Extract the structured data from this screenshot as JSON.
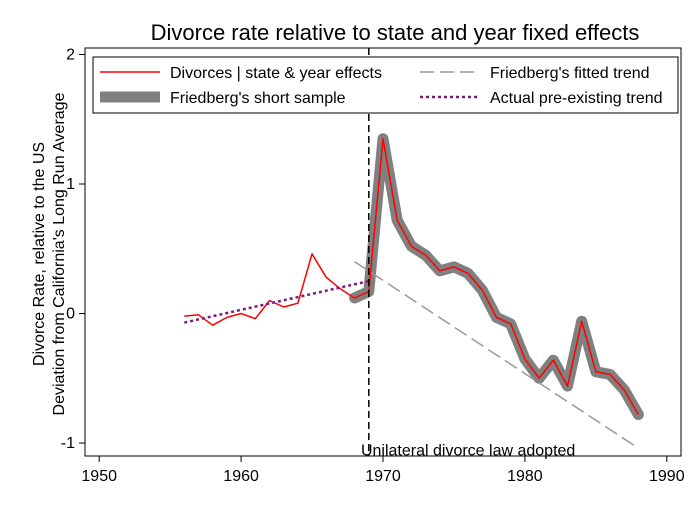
{
  "chart_data": {
    "type": "line",
    "title": "Divorce rate relative to state and year fixed effects",
    "ylabel_line1": "Divorce Rate, relative to the US",
    "ylabel_line2": "Deviation from California's Long Run Average",
    "xlabel": "",
    "xlim": [
      1949,
      1991
    ],
    "ylim": [
      -1.1,
      2.05
    ],
    "x_ticks": [
      1950,
      1960,
      1970,
      1980,
      1990
    ],
    "y_ticks": [
      -1,
      0,
      1,
      2
    ],
    "grid": false,
    "legend_position": "top",
    "vline": {
      "x": 1969,
      "style": "dashed",
      "color": "#000000"
    },
    "annotation": {
      "text": "Unilateral divorce law adopted",
      "x": 1976,
      "y": -1.02
    },
    "series": [
      {
        "name": "Friedberg's short sample",
        "color": "#808080",
        "style": "thick",
        "x": [
          1968,
          1969,
          1970,
          1971,
          1972,
          1973,
          1974,
          1975,
          1976,
          1977,
          1978,
          1979,
          1980,
          1981,
          1982,
          1983,
          1984,
          1985,
          1986,
          1987,
          1988
        ],
        "y": [
          0.12,
          0.17,
          1.35,
          0.72,
          0.52,
          0.45,
          0.33,
          0.36,
          0.31,
          0.18,
          -0.03,
          -0.08,
          -0.35,
          -0.5,
          -0.36,
          -0.56,
          -0.06,
          -0.45,
          -0.47,
          -0.59,
          -0.78
        ]
      },
      {
        "name": "Divorces | state & year effects",
        "color": "#ff0000",
        "style": "solid",
        "x": [
          1956,
          1957,
          1958,
          1959,
          1960,
          1961,
          1962,
          1963,
          1964,
          1965,
          1966,
          1967,
          1968,
          1969,
          1970,
          1971,
          1972,
          1973,
          1974,
          1975,
          1976,
          1977,
          1978,
          1979,
          1980,
          1981,
          1982,
          1983,
          1984,
          1985,
          1986,
          1987,
          1988
        ],
        "y": [
          -0.02,
          -0.01,
          -0.09,
          -0.03,
          0.0,
          -0.04,
          0.1,
          0.05,
          0.08,
          0.46,
          0.28,
          0.19,
          0.12,
          0.17,
          1.35,
          0.72,
          0.52,
          0.45,
          0.33,
          0.36,
          0.31,
          0.18,
          -0.03,
          -0.08,
          -0.35,
          -0.5,
          -0.36,
          -0.56,
          -0.06,
          -0.45,
          -0.47,
          -0.59,
          -0.78
        ]
      },
      {
        "name": "Friedberg's fitted trend",
        "color": "#999999",
        "style": "longdash",
        "x": [
          1968,
          1988
        ],
        "y": [
          0.4,
          -1.04
        ]
      },
      {
        "name": "Actual pre-existing trend",
        "color": "#7b1c7b",
        "style": "dotted",
        "x": [
          1956,
          1969
        ],
        "y": [
          -0.07,
          0.25
        ]
      }
    ],
    "legend_items": [
      {
        "label": "Divorces | state & year effects",
        "color": "#ff0000",
        "style": "solid"
      },
      {
        "label": "Friedberg's fitted trend",
        "color": "#999999",
        "style": "longdash"
      },
      {
        "label": "Friedberg's short sample",
        "color": "#808080",
        "style": "thick"
      },
      {
        "label": "Actual pre-existing trend",
        "color": "#7b1c7b",
        "style": "dotted"
      }
    ]
  }
}
